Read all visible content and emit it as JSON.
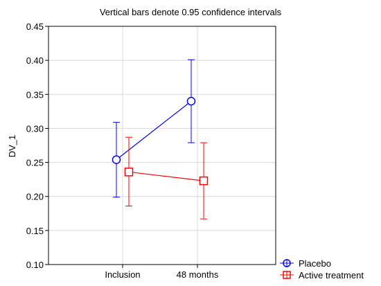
{
  "chart_data": {
    "type": "line",
    "title": "Vertical bars denote 0.95 confidence intervals",
    "xlabel": "",
    "ylabel": "DV_1",
    "categories": [
      "Inclusion",
      "48 months"
    ],
    "ylim": [
      0.1,
      0.45
    ],
    "yticks": [
      "0.10",
      "0.15",
      "0.20",
      "0.25",
      "0.30",
      "0.35",
      "0.40",
      "0.45"
    ],
    "grid": true,
    "legend_position": "bottom-right-outside",
    "series": [
      {
        "name": "Placebo",
        "color": "#0000ff",
        "marker": "circle",
        "values": [
          0.254,
          0.34
        ],
        "ci_low": [
          0.199,
          0.279
        ],
        "ci_high": [
          0.309,
          0.401
        ]
      },
      {
        "name": "Active treatment",
        "color": "#ff0000",
        "marker": "square",
        "values": [
          0.236,
          0.223
        ],
        "ci_low": [
          0.186,
          0.167
        ],
        "ci_high": [
          0.287,
          0.279
        ]
      }
    ]
  }
}
